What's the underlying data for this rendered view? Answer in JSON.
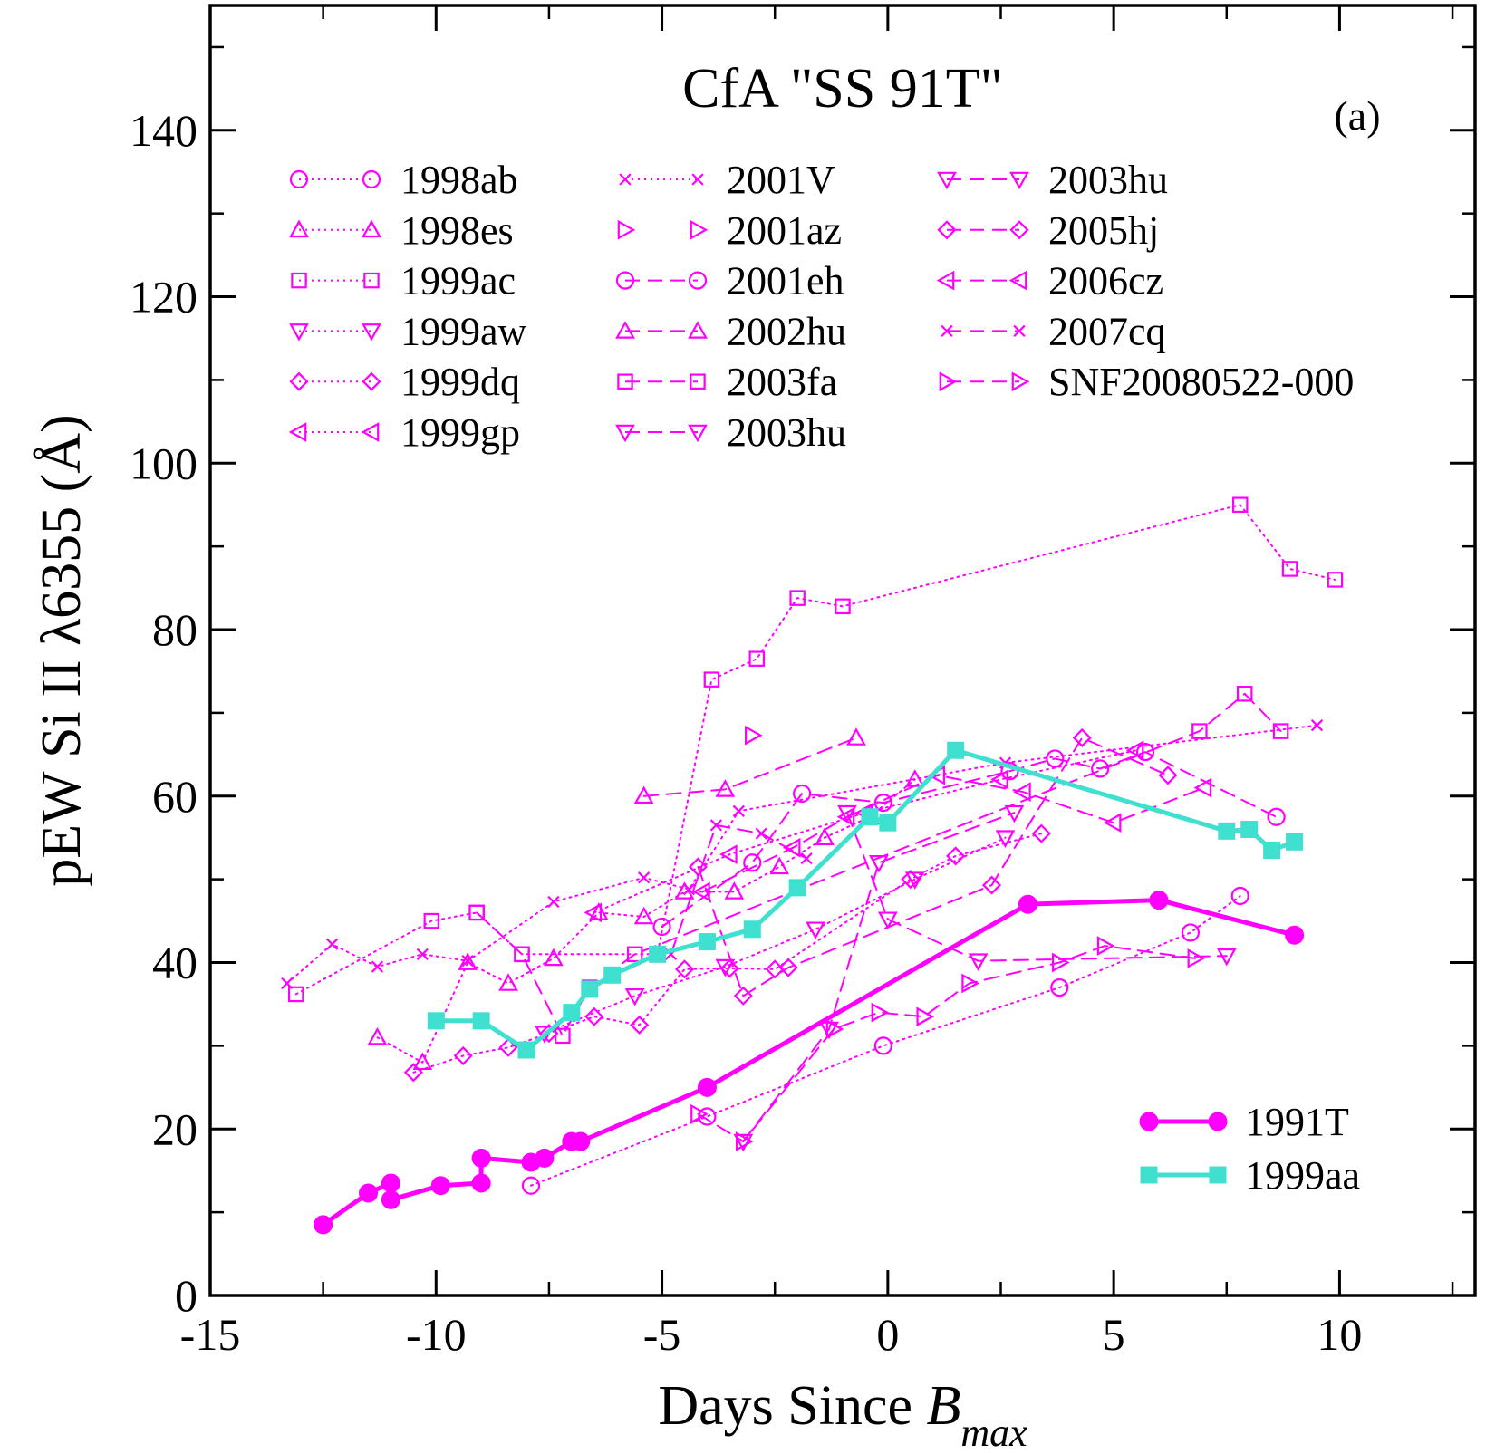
{
  "chart_data": {
    "type": "line",
    "title": "CfA \"SS 91T\"",
    "panel_label": "(a)",
    "xlabel_main": "Days Since ",
    "xlabel_var": "B",
    "xlabel_sub": "max",
    "ylabel": "pEW Si II λ6355 (Å)",
    "xlim": [
      -15,
      13
    ],
    "ylim": [
      0,
      155
    ],
    "x_ticks": [
      -15,
      -10,
      -5,
      0,
      5,
      10
    ],
    "x_tick_labels": [
      "-15",
      "-10",
      "-5",
      "0",
      "5",
      "10"
    ],
    "y_ticks": [
      0,
      20,
      40,
      60,
      80,
      100,
      120,
      140
    ],
    "y_tick_labels": [
      "0",
      "20",
      "40",
      "60",
      "80",
      "100",
      "120",
      "140"
    ],
    "colors": {
      "magenta": "#ff00ff",
      "cyan": "#40e0d0",
      "axis": "#000000"
    },
    "series": [
      {
        "name": "1998ab",
        "marker": "circle",
        "line": "dotted",
        "x": [
          -7.9,
          -4.0,
          -0.1,
          3.8,
          6.7,
          7.8
        ],
        "y": [
          13.2,
          21.5,
          30.0,
          37.0,
          43.6,
          48.0
        ]
      },
      {
        "name": "1998es",
        "marker": "triangle-up",
        "line": "dotted",
        "x": [
          -11.3,
          -10.3,
          -9.3,
          -8.4,
          -7.4,
          -6.4,
          -5.4,
          -4.5,
          -3.4,
          -2.4,
          -1.4,
          -0.4,
          0.6
        ],
        "y": [
          31.0,
          28.0,
          40.0,
          37.5,
          40.5,
          46.0,
          45.5,
          48.5,
          48.5,
          51.5,
          55.0,
          57.5,
          62.0
        ]
      },
      {
        "name": "1999ac",
        "marker": "square",
        "line": "dotted",
        "x": [
          -13.1,
          -10.1,
          -9.1,
          -8.1,
          -5.1,
          -3.9,
          -2.9,
          -2.0,
          -1.0,
          7.8,
          8.9,
          9.9
        ],
        "y": [
          36.2,
          45.0,
          46.0,
          41.0,
          41.0,
          74.0,
          76.5,
          83.8,
          82.8,
          95.0,
          87.3,
          86.0
        ]
      },
      {
        "name": "1999aw",
        "marker": "triangle-down",
        "line": "dotted",
        "x": [
          -7.6,
          -5.6,
          -3.6,
          -1.6,
          0.6,
          2.6
        ],
        "y": [
          31.5,
          36.0,
          39.5,
          44.0,
          50.0,
          55.0
        ]
      },
      {
        "name": "1999dq",
        "marker": "diamond",
        "line": "dotted",
        "x": [
          -10.5,
          -9.4,
          -8.4,
          -7.5,
          -6.5,
          -5.5,
          -4.5,
          -3.5,
          -2.5,
          0.5,
          1.5,
          3.4
        ],
        "y": [
          26.8,
          28.8,
          29.8,
          31.5,
          33.5,
          32.5,
          39.2,
          39.3,
          39.2,
          50.0,
          52.8,
          55.5
        ]
      },
      {
        "name": "1999gp",
        "marker": "triangle-left",
        "line": "dotted",
        "x": [
          -6.5,
          -3.5,
          -0.5,
          2.5,
          5.5
        ],
        "y": [
          46.0,
          53.0,
          58.0,
          62.0,
          65.5
        ]
      },
      {
        "name": "2001V",
        "marker": "x",
        "line": "dotted",
        "x": [
          -13.3,
          -12.3,
          -11.3,
          -10.3,
          -9.3,
          -7.4,
          -5.4,
          -4.4,
          -3.3,
          2.6,
          9.5
        ],
        "y": [
          37.5,
          42.2,
          39.5,
          41.0,
          40.2,
          47.3,
          50.2,
          48.8,
          58.2,
          64.0,
          68.5
        ]
      },
      {
        "name": "2001az",
        "marker": "triangle-right",
        "line": "none",
        "x": [
          -3.0
        ],
        "y": [
          67.3
        ]
      },
      {
        "name": "2001eh",
        "marker": "circle",
        "line": "dashed",
        "x": [
          -5.0,
          -3.0,
          -1.9,
          -0.1,
          2.7,
          3.7,
          4.7,
          5.7,
          8.6
        ],
        "y": [
          44.3,
          52.0,
          60.3,
          59.2,
          63.0,
          64.5,
          63.3,
          65.3,
          57.5
        ]
      },
      {
        "name": "2002hu",
        "marker": "triangle-up",
        "line": "dashed",
        "x": [
          -5.4,
          -3.6,
          -0.7
        ],
        "y": [
          60.0,
          60.8,
          67.0
        ]
      },
      {
        "name": "2003fa",
        "marker": "square",
        "line": "dashed",
        "x": [
          -9.1,
          -8.1,
          -7.2,
          -6.6,
          -5.6,
          6.9,
          7.9,
          8.7
        ],
        "y": [
          46.0,
          41.0,
          31.2,
          37.0,
          41.0,
          67.8,
          72.3,
          67.8
        ]
      },
      {
        "name": "2003hu",
        "marker": "triangle-down",
        "line": "dashed",
        "x": [
          -3.2,
          -1.3,
          -0.2,
          2.8
        ],
        "y": [
          18.5,
          32.0,
          52.0,
          58.0
        ]
      },
      {
        "name": "2003hu",
        "marker": "triangle-down",
        "line": "dashed",
        "x": [
          -0.9,
          0.0,
          2.0,
          7.5
        ],
        "y": [
          58.0,
          45.2,
          40.2,
          40.8
        ]
      },
      {
        "name": "2005hj",
        "marker": "diamond",
        "line": "dashed",
        "x": [
          -4.2,
          -3.2,
          -2.2,
          2.3,
          4.3,
          6.2
        ],
        "y": [
          51.5,
          36.0,
          39.4,
          49.3,
          67.0,
          62.5
        ]
      },
      {
        "name": "2006cz",
        "marker": "triangle-left",
        "line": "dashed",
        "x": [
          -4.1,
          -2.1,
          -0.9,
          1.1,
          3.0,
          5.0,
          7.0
        ],
        "y": [
          48.5,
          53.8,
          57.5,
          62.5,
          60.5,
          56.8,
          61.0
        ]
      },
      {
        "name": "2007cq",
        "marker": "x",
        "line": "dashed",
        "x": [
          -4.8,
          -3.8,
          -2.8,
          -1.8
        ],
        "y": [
          41.0,
          56.5,
          55.5,
          52.5
        ]
      },
      {
        "name": "SNF20080522-000",
        "marker": "triangle-right",
        "line": "dashed",
        "x": [
          -4.2,
          -3.2,
          -1.2,
          -0.2,
          0.8,
          1.8,
          3.8,
          4.8,
          6.8
        ],
        "y": [
          21.8,
          18.5,
          32.0,
          34.0,
          33.5,
          37.5,
          40.0,
          42.0,
          40.5
        ]
      },
      {
        "name": "1991T",
        "marker": "filled-circle",
        "line": "solid-thick",
        "color": "magenta",
        "x": [
          -12.5,
          -11.5,
          -11.0,
          -11.0,
          -9.9,
          -9.0,
          -9.0,
          -7.9,
          -7.6,
          -7.0,
          -6.8,
          -4.0,
          3.1,
          6.0,
          9.0
        ],
        "y": [
          8.5,
          12.3,
          13.5,
          11.5,
          13.2,
          13.5,
          16.5,
          16.0,
          16.5,
          18.5,
          18.5,
          25.0,
          47.0,
          47.5,
          43.3
        ]
      },
      {
        "name": "1999aa",
        "marker": "filled-square",
        "line": "solid-thick",
        "color": "cyan",
        "x": [
          -10.0,
          -9.0,
          -8.0,
          -7.0,
          -6.6,
          -6.1,
          -5.1,
          -4.0,
          -3.0,
          -2.0,
          -0.4,
          0.0,
          1.5,
          7.5,
          8.0,
          8.5,
          9.0
        ],
        "y": [
          33.0,
          33.0,
          29.5,
          34.0,
          36.8,
          38.5,
          41.0,
          42.5,
          44.0,
          49.0,
          57.5,
          56.8,
          65.5,
          55.8,
          56.0,
          53.5,
          54.5
        ]
      }
    ],
    "legend": {
      "columns": [
        [
          "1998ab",
          "1998es",
          "1999ac",
          "1999aw",
          "1999dq",
          "1999gp"
        ],
        [
          "2001V",
          "2001az",
          "2001eh",
          "2002hu",
          "2003fa",
          "2003hu"
        ],
        [
          "2003hu",
          "2005hj",
          "2006cz",
          "2007cq",
          "SNF20080522-000"
        ]
      ],
      "bottom": [
        "1991T",
        "1999aa"
      ]
    }
  }
}
